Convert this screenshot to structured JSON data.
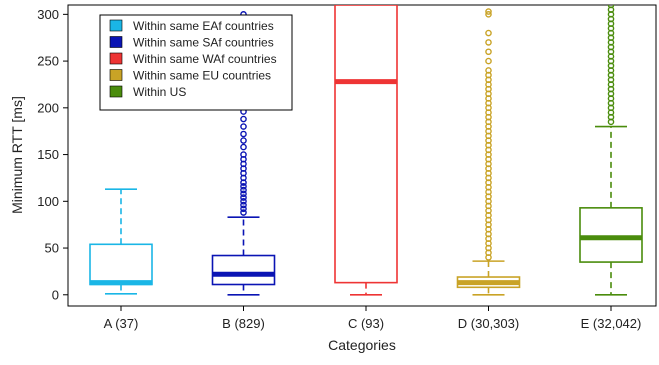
{
  "chart_data": {
    "type": "boxplot",
    "xlabel": "Categories",
    "ylabel": "Minimum RTT [ms]",
    "ylim": [
      -12,
      310
    ],
    "yticks": [
      0,
      50,
      100,
      150,
      200,
      250,
      300
    ],
    "grid": false,
    "legend_position": "top-left",
    "categories": [
      "A (37)",
      "B (829)",
      "C (93)",
      "D (30,303)",
      "E (32,042)"
    ],
    "series": [
      {
        "name": "Within same EAf countries",
        "color": "#1ab6e6",
        "category": "A (37)",
        "whisker_low": 1,
        "q1": 11,
        "median": 13,
        "q3": 54,
        "whisker_high": 113,
        "outliers": []
      },
      {
        "name": "Within same SAf countries",
        "color": "#0a14b4",
        "category": "B (829)",
        "whisker_low": 0,
        "q1": 11,
        "median": 22,
        "q3": 42,
        "whisker_high": 83,
        "outliers": [
          88,
          92,
          96,
          100,
          104,
          108,
          112,
          116,
          120,
          125,
          130,
          135,
          140,
          145,
          150,
          158,
          165,
          172,
          180,
          188,
          196,
          205,
          214,
          222,
          230,
          240,
          250,
          260,
          270,
          280,
          290,
          300
        ]
      },
      {
        "name": "Within same WAf countries",
        "color": "#ee3434",
        "category": "C (93)",
        "whisker_low": 0,
        "q1": 13,
        "median": 228,
        "q3": 310,
        "whisker_high": 310,
        "outliers": []
      },
      {
        "name": "Within same EU countries",
        "color": "#c9a326",
        "category": "D (30,303)",
        "whisker_low": 0,
        "q1": 8,
        "median": 13,
        "q3": 19,
        "whisker_high": 36,
        "outliers": [
          40,
          45,
          50,
          55,
          60,
          65,
          70,
          75,
          80,
          85,
          90,
          95,
          100,
          105,
          110,
          115,
          120,
          125,
          130,
          135,
          140,
          145,
          150,
          155,
          160,
          165,
          170,
          175,
          180,
          185,
          190,
          195,
          200,
          205,
          210,
          215,
          220,
          225,
          230,
          235,
          240,
          250,
          260,
          270,
          280,
          300,
          303
        ]
      },
      {
        "name": "Within US",
        "color": "#4a8c0c",
        "category": "E (32,042)",
        "whisker_low": 0,
        "q1": 35,
        "median": 61,
        "q3": 93,
        "whisker_high": 180,
        "outliers": [
          185,
          190,
          195,
          200,
          205,
          210,
          215,
          220,
          225,
          230,
          235,
          240,
          245,
          250,
          255,
          260,
          265,
          270,
          275,
          280,
          285,
          290,
          295,
          300,
          305,
          310
        ]
      }
    ]
  }
}
